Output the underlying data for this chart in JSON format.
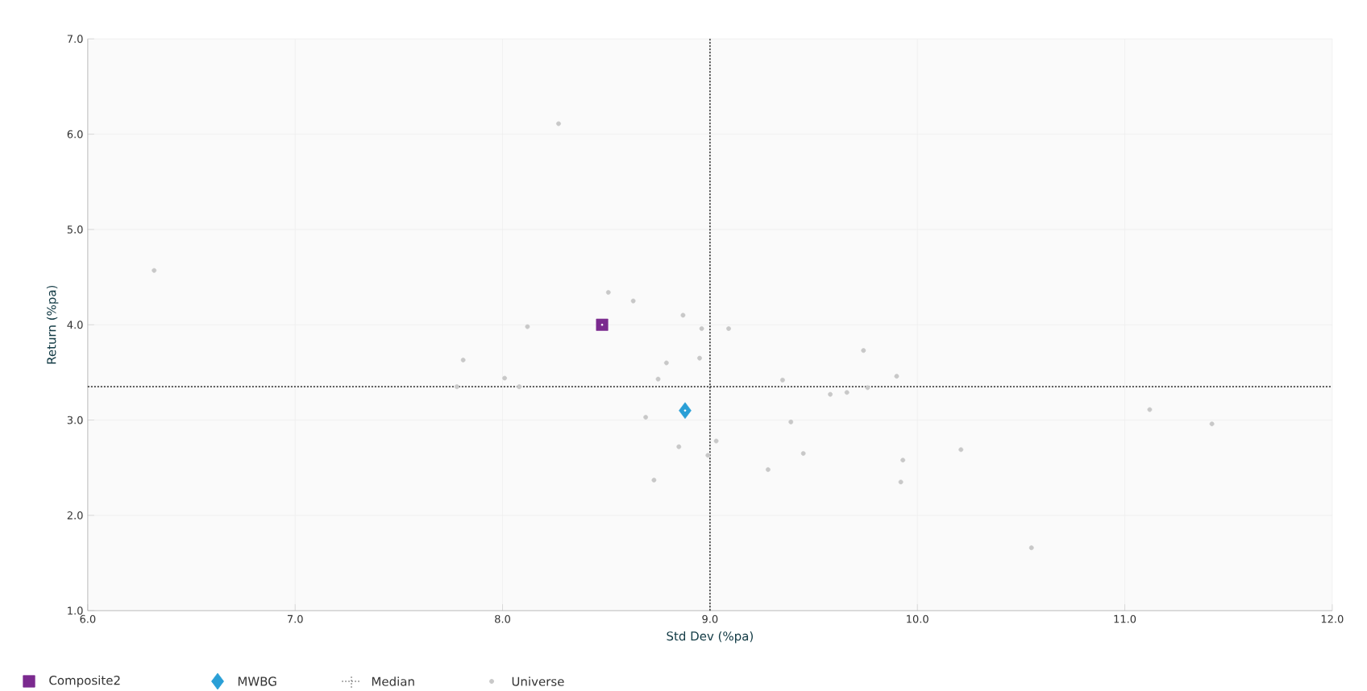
{
  "chart_data": {
    "type": "scatter",
    "xlabel": "Std Dev (%pa)",
    "ylabel": "Return (%pa)",
    "xlim": [
      6,
      12
    ],
    "ylim": [
      1,
      7
    ],
    "xticks": [
      {
        "value": 6,
        "label": "6.0"
      },
      {
        "value": 7,
        "label": "7.0"
      },
      {
        "value": 8,
        "label": "8.0"
      },
      {
        "value": 9,
        "label": "9.0"
      },
      {
        "value": 10,
        "label": "10.0"
      },
      {
        "value": 11,
        "label": "11.0"
      },
      {
        "value": 12,
        "label": "12.0"
      }
    ],
    "yticks": [
      {
        "value": 1,
        "label": "1.0"
      },
      {
        "value": 2,
        "label": "2.0"
      },
      {
        "value": 3,
        "label": "3.0"
      },
      {
        "value": 4,
        "label": "4.0"
      },
      {
        "value": 5,
        "label": "5.0"
      },
      {
        "value": 6,
        "label": "6.0"
      },
      {
        "value": 7,
        "label": "7.0"
      }
    ],
    "grid": true,
    "legend": "bottom left",
    "series": [
      {
        "name": "Composite2",
        "color": "#7b2a8f",
        "marker": "square",
        "x": [
          8.48
        ],
        "values": [
          4.0
        ]
      },
      {
        "name": "MWBG",
        "color": "#2a9fd6",
        "marker": "diamond",
        "x": [
          8.88
        ],
        "values": [
          3.1
        ]
      },
      {
        "name": "Universe",
        "color": "#c8c8c8",
        "marker": "circle",
        "x": [
          6.32,
          8.27,
          7.81,
          7.78,
          8.01,
          8.12,
          8.08,
          8.51,
          8.63,
          8.87,
          8.96,
          9.09,
          8.79,
          8.95,
          8.75,
          9.35,
          9.74,
          9.9,
          9.58,
          9.66,
          9.76,
          8.69,
          9.39,
          9.03,
          8.99,
          8.85,
          9.45,
          9.28,
          8.73,
          9.93,
          9.92,
          10.21,
          10.55,
          11.12,
          11.42
        ],
        "values": [
          4.57,
          6.11,
          3.63,
          3.35,
          3.44,
          3.98,
          3.35,
          4.34,
          4.25,
          4.1,
          3.96,
          3.96,
          3.6,
          3.65,
          3.43,
          3.42,
          3.73,
          3.46,
          3.27,
          3.29,
          3.34,
          3.03,
          2.98,
          2.78,
          2.63,
          2.72,
          2.65,
          2.48,
          2.37,
          2.58,
          2.35,
          2.69,
          1.66,
          3.11,
          2.96
        ]
      }
    ],
    "ref_lines": [
      {
        "axis": "x",
        "value": 9.0,
        "label": "Median",
        "color": "#404040",
        "line_style": "dotted"
      },
      {
        "axis": "y",
        "value": 3.35,
        "color": "#404040",
        "line_style": "dotted"
      }
    ]
  }
}
